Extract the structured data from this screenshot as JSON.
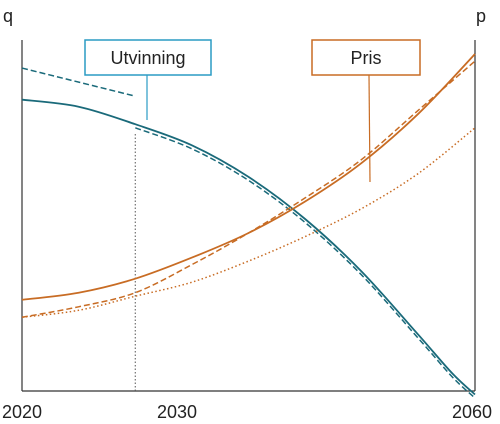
{
  "colors": {
    "extraction": "#1a6a7a",
    "extraction_box": "#2a9bc4",
    "price": "#c86c24",
    "axis": "#333333",
    "guide": "#555555"
  },
  "chart_data": {
    "type": "line",
    "left_axis_label": "q",
    "right_axis_label": "p",
    "x_ticks": [
      "2020",
      "2030",
      "2060"
    ],
    "xlim": [
      2020,
      2060
    ],
    "ylim_note": "axes unscaled (no y tick labels)",
    "guide_line_x": 2030,
    "annotations": [
      {
        "label": "Utvinning",
        "series_group": "extraction"
      },
      {
        "label": "Pris",
        "series_group": "price"
      }
    ],
    "series": [
      {
        "group": "extraction",
        "style": "solid",
        "x": [
          2020,
          2025,
          2030,
          2035,
          2040,
          2045,
          2050,
          2055,
          2058,
          2060
        ],
        "y": [
          0.83,
          0.81,
          0.76,
          0.7,
          0.61,
          0.49,
          0.34,
          0.16,
          0.05,
          -0.01
        ]
      },
      {
        "group": "extraction",
        "style": "dashed",
        "x": [
          2020,
          2030
        ],
        "y": [
          0.92,
          0.84
        ]
      },
      {
        "group": "extraction",
        "style": "dashed",
        "x": [
          2030,
          2035,
          2040,
          2045,
          2050,
          2055,
          2058,
          2060
        ],
        "y": [
          0.75,
          0.69,
          0.6,
          0.48,
          0.33,
          0.15,
          0.04,
          -0.02
        ]
      },
      {
        "group": "price",
        "style": "solid",
        "x": [
          2020,
          2025,
          2030,
          2035,
          2040,
          2045,
          2050,
          2055,
          2060
        ],
        "y": [
          0.26,
          0.28,
          0.32,
          0.38,
          0.45,
          0.54,
          0.65,
          0.79,
          0.96
        ]
      },
      {
        "group": "price",
        "style": "dashed",
        "x": [
          2020,
          2025,
          2030,
          2035,
          2040,
          2045,
          2050,
          2055,
          2060
        ],
        "y": [
          0.21,
          0.24,
          0.28,
          0.36,
          0.45,
          0.55,
          0.66,
          0.8,
          0.94
        ]
      },
      {
        "group": "price",
        "style": "dotted",
        "x": [
          2020,
          2025,
          2030,
          2035,
          2040,
          2045,
          2050,
          2055,
          2060
        ],
        "y": [
          0.21,
          0.23,
          0.27,
          0.31,
          0.37,
          0.44,
          0.52,
          0.62,
          0.75
        ]
      }
    ]
  }
}
